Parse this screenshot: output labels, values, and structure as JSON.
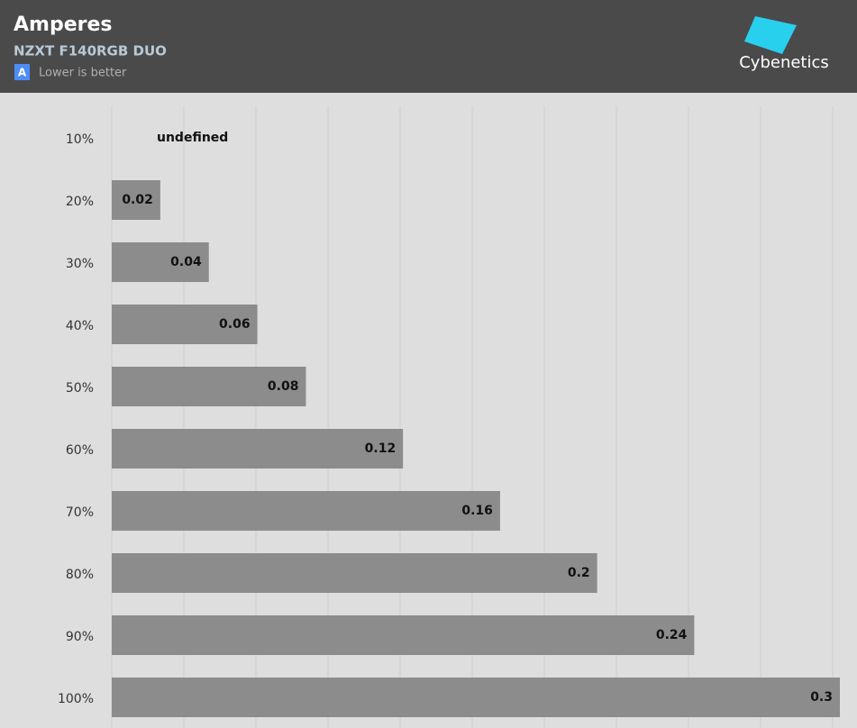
{
  "chart_data": {
    "type": "bar",
    "orientation": "horizontal",
    "title": "Amperes",
    "subtitle": "NZXT F140RGB DUO",
    "legend_badge": "A",
    "legend_text": "Lower is better",
    "brand": "Cybenetics",
    "categories": [
      "10%",
      "20%",
      "30%",
      "40%",
      "50%",
      "60%",
      "70%",
      "80%",
      "90%",
      "100%"
    ],
    "values": [
      null,
      0.02,
      0.04,
      0.06,
      0.08,
      0.12,
      0.16,
      0.2,
      0.24,
      0.3
    ],
    "value_labels": [
      "undefined",
      "0.02",
      "0.04",
      "0.06",
      "0.08",
      "0.12",
      "0.16",
      "0.2",
      "0.24",
      "0.3"
    ],
    "color": "#8c8c8c",
    "xlim": [
      0,
      0.3
    ],
    "grid": true
  }
}
